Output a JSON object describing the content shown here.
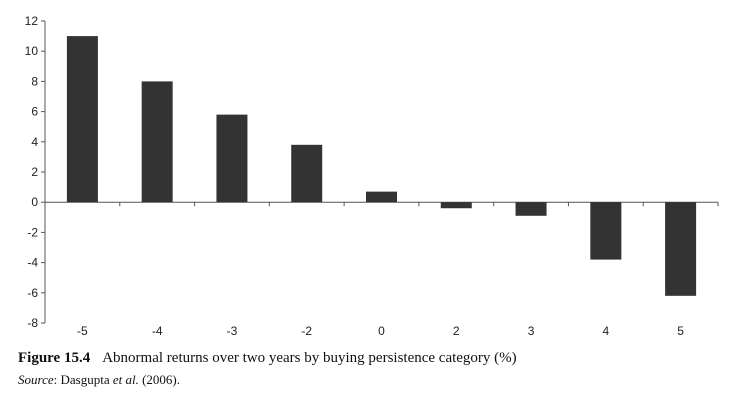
{
  "chart_data": {
    "type": "bar",
    "categories": [
      "-5",
      "-4",
      "-3",
      "-2",
      "0",
      "2",
      "3",
      "4",
      "5"
    ],
    "values": [
      11.0,
      8.0,
      5.8,
      3.8,
      0.7,
      -0.4,
      -0.9,
      -3.8,
      -6.2
    ],
    "ylim": [
      -8,
      12
    ],
    "yticks": [
      "12",
      "10",
      "8",
      "6",
      "4",
      "2",
      "0",
      "-2",
      "-4",
      "-6",
      "-8"
    ],
    "bar_color": "#333333",
    "grid": false,
    "legend": "none"
  },
  "caption": {
    "figure_number": "Figure  15.4",
    "text": "Abnormal returns over two years by buying persistence category (%)"
  },
  "source": {
    "label": "Source",
    "text": ": Dasgupta ",
    "authors_italic": "et al.",
    "year": " (2006)."
  }
}
